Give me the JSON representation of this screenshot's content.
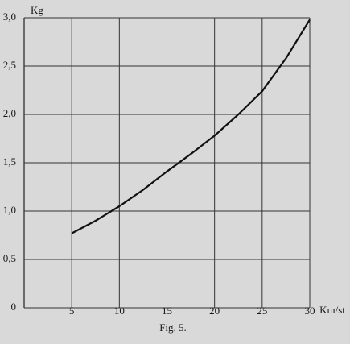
{
  "chart_data": {
    "type": "line",
    "ylabel": "Kg",
    "xlabel": "Km/st",
    "caption": "Fig. 5.",
    "x": [
      5,
      7.5,
      10,
      12.5,
      15,
      17.5,
      20,
      22.5,
      25,
      27.5,
      30
    ],
    "series": [
      {
        "color": "#111111",
        "values": [
          0.77,
          0.9,
          1.05,
          1.22,
          1.41,
          1.59,
          1.78,
          2.0,
          2.24,
          2.58,
          2.98
        ]
      }
    ],
    "xlim": [
      0,
      30
    ],
    "ylim": [
      0,
      3
    ],
    "xticks": [
      5,
      10,
      15,
      20,
      25,
      30
    ],
    "yticks": [
      0,
      {
        "value": 0.5,
        "label": "0,5"
      },
      {
        "value": 1,
        "label": "1,0"
      },
      {
        "value": 1.5,
        "label": "1,5"
      },
      {
        "value": 2,
        "label": "2,0"
      },
      {
        "value": 2.5,
        "label": "2,5"
      },
      {
        "value": 3,
        "label": "3,0"
      }
    ],
    "grid": true
  }
}
